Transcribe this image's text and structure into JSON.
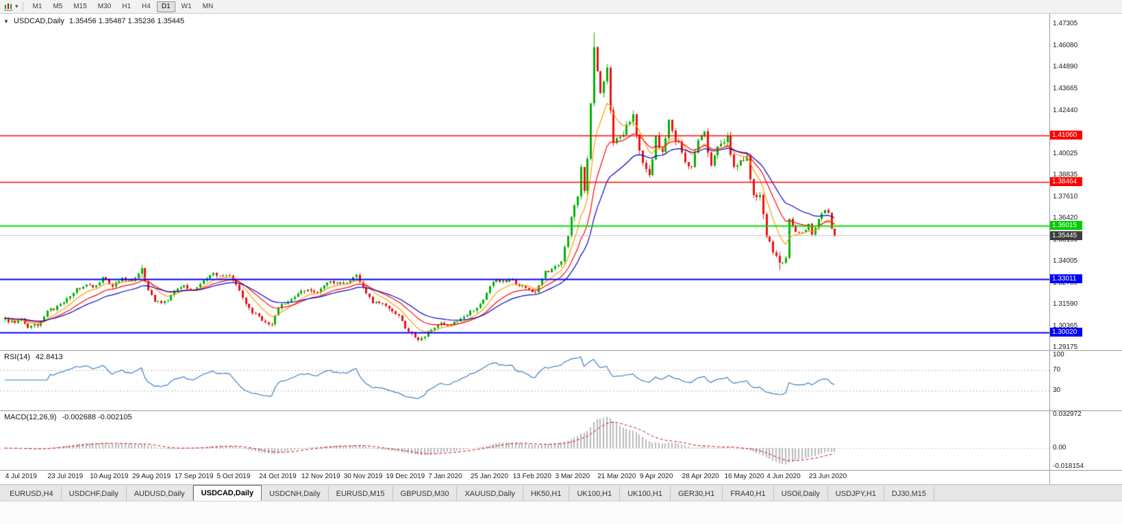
{
  "toolbar": {
    "timeframes": [
      "M1",
      "M5",
      "M15",
      "M30",
      "H1",
      "H4",
      "D1",
      "W1",
      "MN"
    ],
    "active_timeframe": "D1"
  },
  "icons": {
    "one_click_trading": "▼",
    "chart_type_caret": "▾"
  },
  "chart": {
    "symbol_label": "USDCAD,Daily",
    "ohlc": "1.35456 1.35487 1.35236 1.35445"
  },
  "price_axis": {
    "ticks": [
      1.47305,
      1.4608,
      1.4489,
      1.43665,
      1.4244,
      1.40025,
      1.38835,
      1.3761,
      1.3642,
      1.35195,
      1.34005,
      1.3278,
      1.3159,
      1.30365,
      1.29175
    ],
    "badges": [
      {
        "label": "1.41060",
        "price": 1.4106,
        "bg": "#ff0000",
        "fg": "#ffffff"
      },
      {
        "label": "1.38464",
        "price": 1.38464,
        "bg": "#ff0000",
        "fg": "#ffffff"
      },
      {
        "label": "1.36015",
        "price": 1.36015,
        "bg": "#00cc00",
        "fg": "#ffffff"
      },
      {
        "label": "1.35445",
        "price": 1.35445,
        "bg": "#3d3d3d",
        "fg": "#ffffff"
      },
      {
        "label": "1.33011",
        "price": 1.33011,
        "bg": "#0000ff",
        "fg": "#ffffff"
      },
      {
        "label": "1.30020",
        "price": 1.3002,
        "bg": "#0000ff",
        "fg": "#ffffff"
      }
    ]
  },
  "hlines": [
    {
      "price": 1.4106,
      "color": "#ff0000",
      "width": 1.4
    },
    {
      "price": 1.38464,
      "color": "#ff0000",
      "width": 1.4
    },
    {
      "price": 1.36015,
      "color": "#00dd00",
      "width": 2
    },
    {
      "price": 1.35445,
      "color": "#c0c0c0",
      "width": 1
    },
    {
      "price": 1.33011,
      "color": "#0000ff",
      "width": 2
    },
    {
      "price": 1.3002,
      "color": "#0000ff",
      "width": 2
    }
  ],
  "indicators": {
    "rsi": {
      "label": "RSI(14)",
      "value": "42.8413",
      "period": 14,
      "levels": [
        100,
        70,
        30
      ],
      "line_color": "#3c7dc4"
    },
    "macd": {
      "label": "MACD(12,26,9)",
      "value": "-0.002688 -0.002105",
      "fast": 12,
      "slow": 26,
      "signal": 9,
      "axis_labels": [
        {
          "label": "0.032972",
          "value": 0.032972
        },
        {
          "label": "0.00",
          "value": 0
        },
        {
          "label": "-0.018154",
          "value": -0.018154
        }
      ],
      "histogram_color": "#b8b8b8",
      "signal_color": "#dd0000"
    }
  },
  "x_axis": {
    "labels": [
      "4 Jul 2019",
      "23 Jul 2019",
      "10 Aug 2019",
      "29 Aug 2019",
      "17 Sep 2019",
      "5 Oct 2019",
      "24 Oct 2019",
      "12 Nov 2019",
      "30 Nov 2019",
      "19 Dec 2019",
      "7 Jan 2020",
      "25 Jan 2020",
      "13 Feb 2020",
      "3 Mar 2020",
      "21 Mar 2020",
      "9 Apr 2020",
      "28 Apr 2020",
      "16 May 2020",
      "4 Jun 2020",
      "23 Jun 2020"
    ],
    "indices": [
      1,
      14,
      27,
      40,
      53,
      66,
      79,
      92,
      105,
      118,
      131,
      144,
      157,
      170,
      183,
      196,
      209,
      222,
      235,
      248
    ]
  },
  "tabs": {
    "items": [
      "EURUSD,H4",
      "USDCHF,Daily",
      "AUDUSD,Daily",
      "USDCAD,Daily",
      "USDCNH,Daily",
      "EURUSD,M15",
      "GBPUSD,M30",
      "XAUUSD,Daily",
      "HK50,H1",
      "UK100,H1",
      "UK100,H1",
      "GER30,H1",
      "FRA40,H1",
      "USOil,Daily",
      "USDJPY,H1",
      "DJ30,M15"
    ],
    "active_index": 3
  },
  "chart_data": {
    "type": "candlestick",
    "symbol": "USDCAD",
    "timeframe": "Daily",
    "candle_count": 256,
    "last_price": 1.35445,
    "ylim": [
      1.2902,
      1.4788
    ],
    "colors": {
      "up": "#00b300",
      "down": "#ee1111"
    },
    "ma": [
      {
        "period": 8,
        "color": "#ff9900"
      },
      {
        "period": 16,
        "color": "#ff0000"
      },
      {
        "period": 26,
        "color": "#0000cc"
      }
    ],
    "price_path": [
      [
        0,
        1.3075
      ],
      [
        2,
        1.306
      ],
      [
        5,
        1.3068
      ],
      [
        7,
        1.3032
      ],
      [
        10,
        1.3042
      ],
      [
        13,
        1.3118
      ],
      [
        16,
        1.3145
      ],
      [
        19,
        1.3195
      ],
      [
        22,
        1.3248
      ],
      [
        25,
        1.3268
      ],
      [
        27,
        1.3252
      ],
      [
        30,
        1.3302
      ],
      [
        33,
        1.3268
      ],
      [
        36,
        1.3308
      ],
      [
        39,
        1.3288
      ],
      [
        41,
        1.3322
      ],
      [
        42,
        1.3368
      ],
      [
        44,
        1.3232
      ],
      [
        46,
        1.3178
      ],
      [
        49,
        1.3168
      ],
      [
        52,
        1.3232
      ],
      [
        55,
        1.3258
      ],
      [
        58,
        1.3238
      ],
      [
        61,
        1.3288
      ],
      [
        64,
        1.3335
      ],
      [
        66,
        1.3318
      ],
      [
        69,
        1.3328
      ],
      [
        72,
        1.3232
      ],
      [
        75,
        1.3132
      ],
      [
        78,
        1.3088
      ],
      [
        80,
        1.3058
      ],
      [
        82,
        1.3045
      ],
      [
        84,
        1.3148
      ],
      [
        87,
        1.3178
      ],
      [
        90,
        1.3228
      ],
      [
        93,
        1.3248
      ],
      [
        96,
        1.3228
      ],
      [
        99,
        1.3288
      ],
      [
        102,
        1.3278
      ],
      [
        105,
        1.3282
      ],
      [
        108,
        1.3318
      ],
      [
        110,
        1.3258
      ],
      [
        113,
        1.3172
      ],
      [
        116,
        1.3162
      ],
      [
        118,
        1.3132
      ],
      [
        121,
        1.3092
      ],
      [
        124,
        1.3002
      ],
      [
        127,
        1.2968
      ],
      [
        129,
        1.2988
      ],
      [
        131,
        1.3018
      ],
      [
        134,
        1.3052
      ],
      [
        137,
        1.3042
      ],
      [
        140,
        1.3072
      ],
      [
        143,
        1.3118
      ],
      [
        145,
        1.3148
      ],
      [
        147,
        1.3188
      ],
      [
        150,
        1.3288
      ],
      [
        153,
        1.3292
      ],
      [
        156,
        1.3288
      ],
      [
        158,
        1.3258
      ],
      [
        161,
        1.3248
      ],
      [
        163,
        1.3228
      ],
      [
        166,
        1.3338
      ],
      [
        169,
        1.3372
      ],
      [
        171,
        1.3398
      ],
      [
        173,
        1.3528
      ],
      [
        174,
        1.3658
      ],
      [
        175,
        1.3728
      ],
      [
        176,
        1.3758
      ],
      [
        177,
        1.3928
      ],
      [
        178,
        1.3808
      ],
      [
        179,
        1.3988
      ],
      [
        180,
        1.4278
      ],
      [
        181,
        1.4598
      ],
      [
        182,
        1.4448
      ],
      [
        183,
        1.4348
      ],
      [
        185,
        1.4468
      ],
      [
        186,
        1.4248
      ],
      [
        187,
        1.4058
      ],
      [
        189,
        1.4088
      ],
      [
        191,
        1.4168
      ],
      [
        193,
        1.4208
      ],
      [
        195,
        1.4018
      ],
      [
        196,
        1.3962
      ],
      [
        198,
        1.3882
      ],
      [
        200,
        1.4088
      ],
      [
        202,
        1.3998
      ],
      [
        204,
        1.4208
      ],
      [
        206,
        1.4078
      ],
      [
        208,
        1.4028
      ],
      [
        209,
        1.3958
      ],
      [
        211,
        1.3938
      ],
      [
        213,
        1.4068
      ],
      [
        215,
        1.4128
      ],
      [
        217,
        1.3922
      ],
      [
        219,
        1.4048
      ],
      [
        221,
        1.4058
      ],
      [
        222,
        1.4108
      ],
      [
        224,
        1.3922
      ],
      [
        226,
        1.3968
      ],
      [
        228,
        1.3988
      ],
      [
        230,
        1.3752
      ],
      [
        232,
        1.3778
      ],
      [
        234,
        1.3522
      ],
      [
        235,
        1.3502
      ],
      [
        237,
        1.3422
      ],
      [
        238,
        1.3392
      ],
      [
        240,
        1.3412
      ],
      [
        241,
        1.3638
      ],
      [
        243,
        1.3572
      ],
      [
        245,
        1.3558
      ],
      [
        247,
        1.3602
      ],
      [
        248,
        1.3552
      ],
      [
        250,
        1.3638
      ],
      [
        252,
        1.3692
      ],
      [
        253,
        1.3678
      ],
      [
        254,
        1.3582
      ],
      [
        255,
        1.35445
      ]
    ],
    "extremes": [
      {
        "i": 42,
        "high": 1.3383
      },
      {
        "i": 127,
        "low": 1.2952
      },
      {
        "i": 177,
        "high": 1.3945
      },
      {
        "i": 181,
        "high": 1.4685
      },
      {
        "i": 238,
        "low": 1.3355
      }
    ]
  }
}
